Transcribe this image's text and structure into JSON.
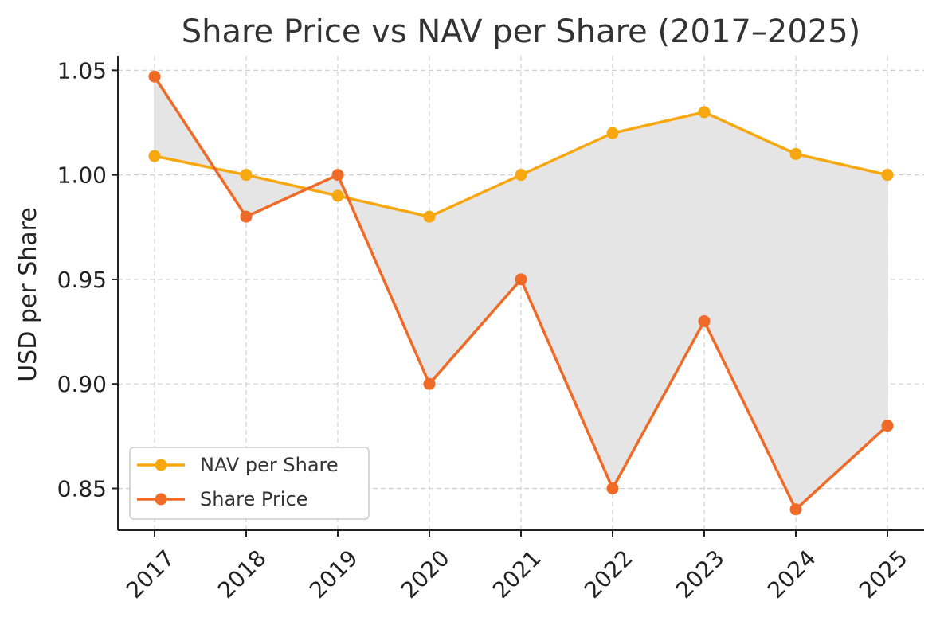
{
  "chart_data": {
    "type": "line",
    "title": "Share Price vs NAV per Share (2017–2025)",
    "xlabel": "",
    "ylabel": "USD per Share",
    "categories": [
      "2017",
      "2018",
      "2019",
      "2020",
      "2021",
      "2022",
      "2023",
      "2024",
      "2025"
    ],
    "ylim": [
      0.83,
      1.057
    ],
    "yticks": [
      0.85,
      0.9,
      0.95,
      1.0,
      1.05
    ],
    "ytick_labels": [
      "0.85",
      "0.90",
      "0.95",
      "1.00",
      "1.05"
    ],
    "grid": true,
    "legend_position": "lower-left",
    "fill_between": {
      "color": "#e5e5e5"
    },
    "series": [
      {
        "name": "NAV per Share",
        "color": "#f7a70f",
        "values": [
          1.009,
          1.0,
          0.99,
          0.98,
          1.0,
          1.02,
          1.03,
          1.01,
          1.0
        ]
      },
      {
        "name": "Share Price",
        "color": "#ef6a27",
        "values": [
          1.047,
          0.98,
          1.0,
          0.9,
          0.95,
          0.85,
          0.93,
          0.84,
          0.88
        ]
      }
    ]
  }
}
